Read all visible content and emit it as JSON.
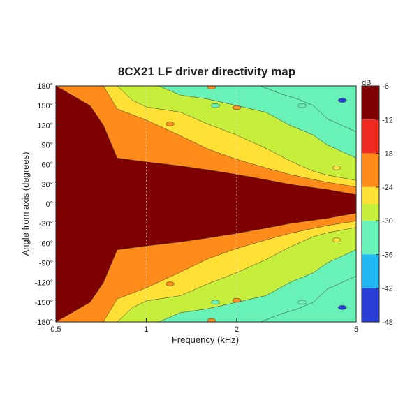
{
  "chart_data": {
    "type": "heatmap",
    "title": "8CX21 LF driver directivity map",
    "xlabel": "Frequency (kHz)",
    "ylabel": "Angle from axis (degrees)",
    "xscale": "log",
    "xlim": [
      0.5,
      5
    ],
    "ylim": [
      -180,
      180
    ],
    "x_ticks": [
      {
        "value": 0.5,
        "label": "0.5"
      },
      {
        "value": 1,
        "label": "1"
      },
      {
        "value": 2,
        "label": "2"
      },
      {
        "value": 5,
        "label": "5"
      }
    ],
    "y_ticks": [
      {
        "value": 180,
        "label": "180°"
      },
      {
        "value": 150,
        "label": "150°"
      },
      {
        "value": 120,
        "label": "120°"
      },
      {
        "value": 90,
        "label": "90°"
      },
      {
        "value": 60,
        "label": "60°"
      },
      {
        "value": 30,
        "label": "30°"
      },
      {
        "value": 0,
        "label": "0°"
      },
      {
        "value": -30,
        "label": "-30°"
      },
      {
        "value": -60,
        "label": "-60°"
      },
      {
        "value": -90,
        "label": "-90°"
      },
      {
        "value": -120,
        "label": "-120°"
      },
      {
        "value": -150,
        "label": "-150°"
      },
      {
        "value": -180,
        "label": "-180°"
      }
    ],
    "colorbar": {
      "unit": "dB",
      "range": [
        -48,
        -6
      ],
      "ticks": [
        {
          "value": -6,
          "label": "-6"
        },
        {
          "value": -12,
          "label": "-12"
        },
        {
          "value": -18,
          "label": "-18"
        },
        {
          "value": -24,
          "label": "-24"
        },
        {
          "value": -30,
          "label": "-30"
        },
        {
          "value": -36,
          "label": "-36"
        },
        {
          "value": -42,
          "label": "-42"
        },
        {
          "value": -48,
          "label": "-48"
        }
      ],
      "levels": [
        {
          "level": -6,
          "color": "#7f0000"
        },
        {
          "level": -12,
          "color": "#ee2a1e"
        },
        {
          "level": -18,
          "color": "#ff8c1a"
        },
        {
          "level": -24,
          "color": "#ffe135"
        },
        {
          "level": -27,
          "color": "#c6ef3c"
        },
        {
          "level": -30,
          "color": "#69f2b8"
        },
        {
          "level": -36,
          "color": "#1fb8f0"
        },
        {
          "level": -42,
          "color": "#2a3fd6"
        },
        {
          "level": -48,
          "color": "#00007f"
        }
      ]
    },
    "contour_boundaries": [
      {
        "name": "main-lobe",
        "level_db": -6,
        "half_width_deg": [
          {
            "f": 0.5,
            "angle": 180
          },
          {
            "f": 0.65,
            "angle": 150
          },
          {
            "f": 0.72,
            "angle": 120
          },
          {
            "f": 0.8,
            "angle": 70
          },
          {
            "f": 1.0,
            "angle": 64
          },
          {
            "f": 1.3,
            "angle": 58
          },
          {
            "f": 1.6,
            "angle": 52
          },
          {
            "f": 2.0,
            "angle": 45
          },
          {
            "f": 2.5,
            "angle": 37
          },
          {
            "f": 3.0,
            "angle": 30
          },
          {
            "f": 4.0,
            "angle": 22
          },
          {
            "f": 5.0,
            "angle": 14
          }
        ]
      },
      {
        "name": "minus-12-region",
        "level_db": -12,
        "angle_edge_deg": [
          {
            "f": 0.72,
            "angle": 180
          },
          {
            "f": 0.8,
            "angle": 145
          },
          {
            "f": 1.0,
            "angle": 128
          },
          {
            "f": 1.3,
            "angle": 104
          },
          {
            "f": 1.6,
            "angle": 84
          },
          {
            "f": 2.0,
            "angle": 68
          },
          {
            "f": 2.5,
            "angle": 55
          },
          {
            "f": 3.0,
            "angle": 45
          },
          {
            "f": 4.0,
            "angle": 33
          },
          {
            "f": 5.0,
            "angle": 26
          }
        ]
      },
      {
        "name": "minus-18-region",
        "level_db": -18,
        "angle_edge_deg": [
          {
            "f": 0.8,
            "angle": 180
          },
          {
            "f": 0.9,
            "angle": 158
          },
          {
            "f": 1.0,
            "angle": 148
          },
          {
            "f": 1.3,
            "angle": 140
          },
          {
            "f": 1.6,
            "angle": 122
          },
          {
            "f": 2.0,
            "angle": 105
          },
          {
            "f": 2.5,
            "angle": 85
          },
          {
            "f": 3.0,
            "angle": 66
          },
          {
            "f": 3.6,
            "angle": 50
          },
          {
            "f": 4.0,
            "angle": 44
          },
          {
            "f": 5.0,
            "angle": 36
          }
        ]
      },
      {
        "name": "minus-24-region",
        "level_db": -24,
        "angle_edge_deg": [
          {
            "f": 1.1,
            "angle": 180
          },
          {
            "f": 1.3,
            "angle": 166
          },
          {
            "f": 1.6,
            "angle": 160
          },
          {
            "f": 2.0,
            "angle": 150
          },
          {
            "f": 2.5,
            "angle": 140
          },
          {
            "f": 3.0,
            "angle": 120
          },
          {
            "f": 3.6,
            "angle": 105
          },
          {
            "f": 4.0,
            "angle": 90
          },
          {
            "f": 5.0,
            "angle": 70
          }
        ]
      },
      {
        "name": "minus-30-region",
        "level_db": -30,
        "angle_edge_deg": [
          {
            "f": 2.4,
            "angle": 180
          },
          {
            "f": 2.8,
            "angle": 168
          },
          {
            "f": 3.2,
            "angle": 160
          },
          {
            "f": 3.6,
            "angle": 150
          },
          {
            "f": 4.0,
            "angle": 130
          },
          {
            "f": 5.0,
            "angle": 110
          }
        ]
      },
      {
        "name": "minus-36-region",
        "level_db": -36,
        "angle_edge_deg": [
          {
            "f": 3.7,
            "angle": 180
          },
          {
            "f": 3.8,
            "angle": 160
          },
          {
            "f": 4.2,
            "angle": 140
          },
          {
            "f": 5.0,
            "angle": 132
          }
        ]
      }
    ]
  }
}
